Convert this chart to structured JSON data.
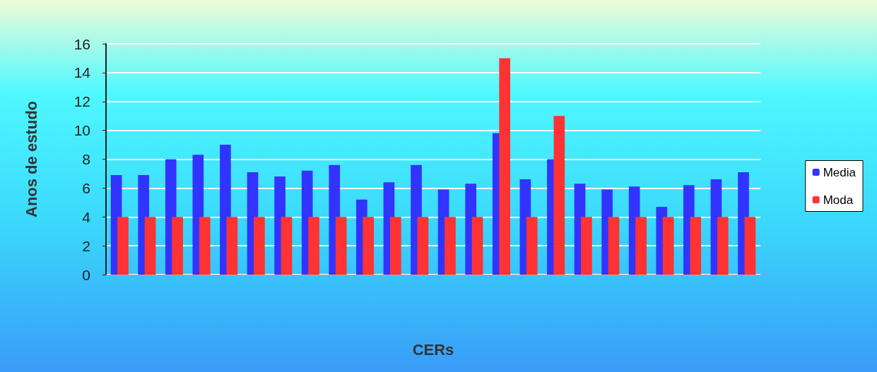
{
  "chart_data": {
    "type": "bar",
    "xlabel": "CERs",
    "ylabel": "Anos de estudo",
    "categories": [
      null,
      null,
      null,
      null,
      null,
      null,
      null,
      null,
      null,
      null,
      null,
      null,
      null,
      null,
      null,
      null,
      null,
      null,
      null,
      null,
      null,
      null,
      null,
      null
    ],
    "series": [
      {
        "name": "Media",
        "color": "#3333ff",
        "values": [
          6.9,
          6.9,
          8.0,
          8.3,
          9.0,
          7.1,
          6.8,
          7.2,
          7.6,
          5.2,
          6.4,
          7.6,
          5.9,
          6.3,
          9.8,
          6.6,
          8.0,
          6.3,
          5.9,
          6.1,
          4.7,
          6.2,
          6.6,
          7.1
        ]
      },
      {
        "name": "Moda",
        "color": "#ff3333",
        "values": [
          4,
          4,
          4,
          4,
          4,
          4,
          4,
          4,
          4,
          4,
          4,
          4,
          4,
          4,
          15,
          4,
          11,
          4,
          4,
          4,
          4,
          4,
          4,
          4
        ]
      }
    ],
    "ylim": [
      0,
      16
    ],
    "yticks": [
      0,
      2,
      4,
      6,
      8,
      10,
      12,
      14,
      16
    ],
    "grid": "y",
    "legend": "right"
  }
}
